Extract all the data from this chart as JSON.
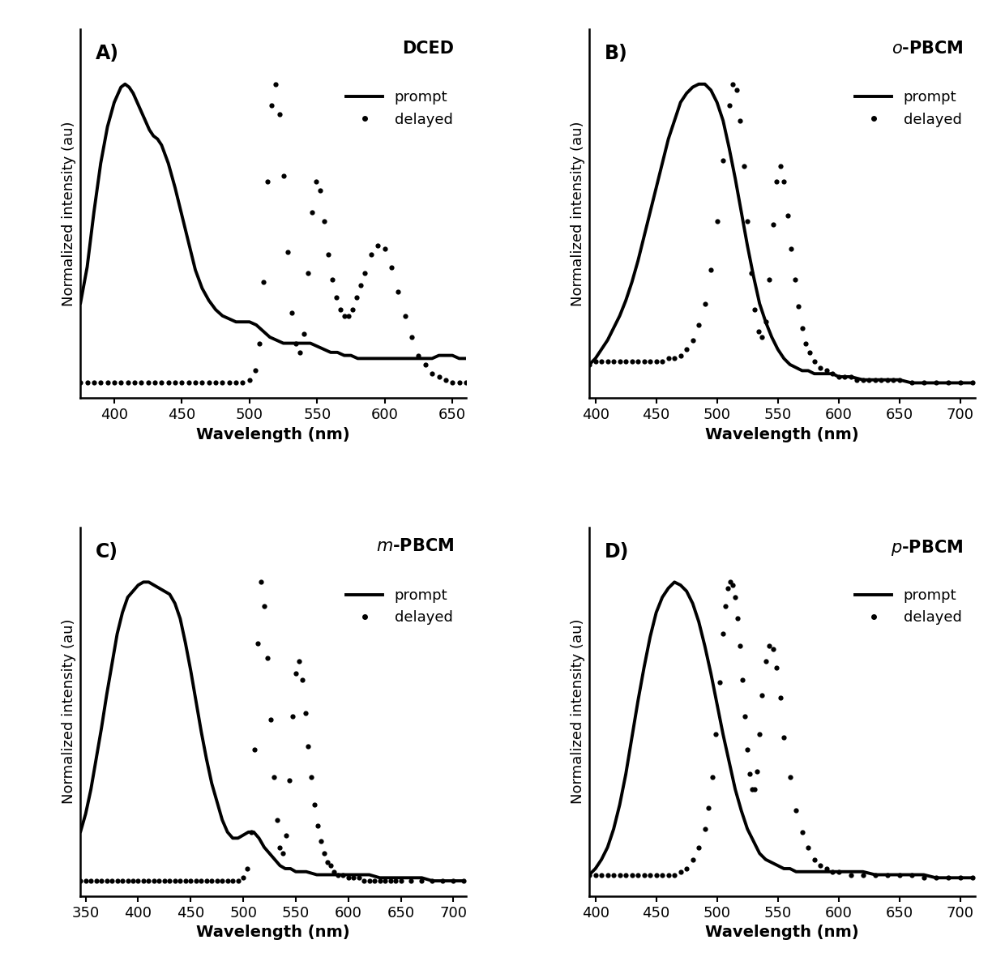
{
  "panels": [
    {
      "label": "A)",
      "title": "DCED",
      "title_italic": false,
      "xlim": [
        375,
        660
      ],
      "xticks": [
        400,
        450,
        500,
        550,
        600,
        650
      ],
      "prompt_x": [
        375,
        380,
        385,
        390,
        395,
        400,
        405,
        408,
        411,
        414,
        417,
        420,
        423,
        426,
        429,
        432,
        435,
        440,
        445,
        450,
        455,
        460,
        465,
        470,
        475,
        480,
        485,
        490,
        495,
        500,
        505,
        510,
        515,
        520,
        525,
        530,
        535,
        540,
        545,
        550,
        555,
        560,
        565,
        570,
        575,
        580,
        585,
        590,
        595,
        600,
        605,
        610,
        615,
        620,
        625,
        630,
        635,
        640,
        645,
        650,
        655,
        660
      ],
      "prompt_y": [
        0.28,
        0.4,
        0.58,
        0.74,
        0.86,
        0.94,
        0.99,
        1.0,
        0.99,
        0.97,
        0.94,
        0.91,
        0.88,
        0.85,
        0.83,
        0.82,
        0.8,
        0.74,
        0.66,
        0.57,
        0.48,
        0.39,
        0.33,
        0.29,
        0.26,
        0.24,
        0.23,
        0.22,
        0.22,
        0.22,
        0.21,
        0.19,
        0.17,
        0.16,
        0.15,
        0.15,
        0.15,
        0.15,
        0.15,
        0.14,
        0.13,
        0.12,
        0.12,
        0.11,
        0.11,
        0.1,
        0.1,
        0.1,
        0.1,
        0.1,
        0.1,
        0.1,
        0.1,
        0.1,
        0.1,
        0.1,
        0.1,
        0.11,
        0.11,
        0.11,
        0.1,
        0.1
      ],
      "delayed_x": [
        375,
        380,
        385,
        390,
        395,
        400,
        405,
        410,
        415,
        420,
        425,
        430,
        435,
        440,
        445,
        450,
        455,
        460,
        465,
        470,
        475,
        480,
        485,
        490,
        495,
        500,
        504,
        507,
        510,
        513,
        516,
        519,
        522,
        525,
        528,
        531,
        534,
        537,
        540,
        543,
        546,
        549,
        552,
        555,
        558,
        561,
        564,
        567,
        570,
        573,
        576,
        579,
        582,
        585,
        590,
        595,
        600,
        605,
        610,
        615,
        620,
        625,
        630,
        635,
        640,
        645,
        650,
        655,
        660
      ],
      "delayed_y": [
        0.02,
        0.02,
        0.02,
        0.02,
        0.02,
        0.02,
        0.02,
        0.02,
        0.02,
        0.02,
        0.02,
        0.02,
        0.02,
        0.02,
        0.02,
        0.02,
        0.02,
        0.02,
        0.02,
        0.02,
        0.02,
        0.02,
        0.02,
        0.02,
        0.02,
        0.03,
        0.06,
        0.15,
        0.35,
        0.68,
        0.93,
        1.0,
        0.9,
        0.7,
        0.45,
        0.25,
        0.15,
        0.12,
        0.18,
        0.38,
        0.58,
        0.68,
        0.65,
        0.55,
        0.44,
        0.36,
        0.3,
        0.26,
        0.24,
        0.24,
        0.26,
        0.3,
        0.34,
        0.38,
        0.44,
        0.47,
        0.46,
        0.4,
        0.32,
        0.24,
        0.17,
        0.11,
        0.08,
        0.05,
        0.04,
        0.03,
        0.02,
        0.02,
        0.02
      ]
    },
    {
      "label": "B)",
      "title": "o-PBCM",
      "title_italic": true,
      "xlim": [
        395,
        712
      ],
      "xticks": [
        400,
        450,
        500,
        550,
        600,
        650,
        700
      ],
      "prompt_x": [
        395,
        400,
        405,
        410,
        415,
        420,
        425,
        430,
        435,
        440,
        445,
        450,
        455,
        460,
        465,
        470,
        475,
        480,
        485,
        490,
        495,
        500,
        505,
        510,
        515,
        520,
        525,
        530,
        535,
        540,
        545,
        550,
        555,
        560,
        565,
        570,
        575,
        580,
        585,
        590,
        595,
        600,
        610,
        620,
        630,
        640,
        650,
        660,
        670,
        680,
        690,
        700,
        710
      ],
      "prompt_y": [
        0.08,
        0.1,
        0.13,
        0.16,
        0.2,
        0.24,
        0.29,
        0.35,
        0.42,
        0.5,
        0.58,
        0.66,
        0.74,
        0.82,
        0.88,
        0.94,
        0.97,
        0.99,
        1.0,
        1.0,
        0.98,
        0.94,
        0.88,
        0.79,
        0.69,
        0.58,
        0.47,
        0.37,
        0.28,
        0.22,
        0.17,
        0.13,
        0.1,
        0.08,
        0.07,
        0.06,
        0.06,
        0.05,
        0.05,
        0.05,
        0.05,
        0.04,
        0.04,
        0.03,
        0.03,
        0.03,
        0.03,
        0.02,
        0.02,
        0.02,
        0.02,
        0.02,
        0.02
      ],
      "delayed_x": [
        395,
        400,
        405,
        410,
        415,
        420,
        425,
        430,
        435,
        440,
        445,
        450,
        455,
        460,
        465,
        470,
        475,
        480,
        485,
        490,
        495,
        500,
        505,
        510,
        513,
        516,
        519,
        522,
        525,
        528,
        531,
        534,
        537,
        540,
        543,
        546,
        549,
        552,
        555,
        558,
        561,
        564,
        567,
        570,
        573,
        576,
        580,
        585,
        590,
        595,
        600,
        605,
        610,
        615,
        620,
        625,
        630,
        635,
        640,
        645,
        650,
        660,
        670,
        680,
        690,
        700,
        710
      ],
      "delayed_y": [
        0.08,
        0.09,
        0.09,
        0.09,
        0.09,
        0.09,
        0.09,
        0.09,
        0.09,
        0.09,
        0.09,
        0.09,
        0.09,
        0.1,
        0.1,
        0.11,
        0.13,
        0.16,
        0.21,
        0.28,
        0.39,
        0.55,
        0.75,
        0.93,
        1.0,
        0.98,
        0.88,
        0.73,
        0.55,
        0.38,
        0.26,
        0.19,
        0.17,
        0.22,
        0.36,
        0.54,
        0.68,
        0.73,
        0.68,
        0.57,
        0.46,
        0.36,
        0.27,
        0.2,
        0.15,
        0.12,
        0.09,
        0.07,
        0.06,
        0.05,
        0.04,
        0.04,
        0.04,
        0.03,
        0.03,
        0.03,
        0.03,
        0.03,
        0.03,
        0.03,
        0.03,
        0.02,
        0.02,
        0.02,
        0.02,
        0.02,
        0.02
      ]
    },
    {
      "label": "C)",
      "title": "m-PBCM",
      "title_italic": true,
      "xlim": [
        345,
        712
      ],
      "xticks": [
        350,
        400,
        450,
        500,
        550,
        600,
        650,
        700
      ],
      "prompt_x": [
        345,
        350,
        355,
        360,
        365,
        370,
        375,
        380,
        385,
        390,
        395,
        400,
        405,
        410,
        415,
        420,
        425,
        430,
        435,
        440,
        445,
        450,
        455,
        460,
        465,
        470,
        475,
        480,
        485,
        490,
        495,
        500,
        505,
        510,
        515,
        520,
        525,
        530,
        535,
        540,
        545,
        550,
        555,
        560,
        570,
        580,
        590,
        600,
        610,
        620,
        630,
        640,
        650,
        660,
        670,
        680,
        690,
        700,
        710
      ],
      "prompt_y": [
        0.18,
        0.24,
        0.32,
        0.42,
        0.52,
        0.63,
        0.73,
        0.83,
        0.9,
        0.95,
        0.97,
        0.99,
        1.0,
        1.0,
        0.99,
        0.98,
        0.97,
        0.96,
        0.93,
        0.88,
        0.8,
        0.71,
        0.61,
        0.51,
        0.42,
        0.34,
        0.28,
        0.22,
        0.18,
        0.16,
        0.16,
        0.17,
        0.18,
        0.18,
        0.16,
        0.13,
        0.11,
        0.09,
        0.07,
        0.06,
        0.06,
        0.05,
        0.05,
        0.05,
        0.04,
        0.04,
        0.04,
        0.04,
        0.04,
        0.04,
        0.03,
        0.03,
        0.03,
        0.03,
        0.03,
        0.02,
        0.02,
        0.02,
        0.02
      ],
      "delayed_x": [
        345,
        350,
        355,
        360,
        365,
        370,
        375,
        380,
        385,
        390,
        395,
        400,
        405,
        410,
        415,
        420,
        425,
        430,
        435,
        440,
        445,
        450,
        455,
        460,
        465,
        470,
        475,
        480,
        485,
        490,
        495,
        500,
        504,
        508,
        511,
        514,
        517,
        520,
        523,
        526,
        529,
        532,
        535,
        538,
        541,
        544,
        547,
        550,
        553,
        556,
        559,
        562,
        565,
        568,
        571,
        574,
        577,
        580,
        583,
        586,
        590,
        595,
        600,
        605,
        610,
        615,
        620,
        625,
        630,
        635,
        640,
        645,
        650,
        660,
        670,
        680,
        690,
        700,
        710
      ],
      "delayed_y": [
        0.02,
        0.02,
        0.02,
        0.02,
        0.02,
        0.02,
        0.02,
        0.02,
        0.02,
        0.02,
        0.02,
        0.02,
        0.02,
        0.02,
        0.02,
        0.02,
        0.02,
        0.02,
        0.02,
        0.02,
        0.02,
        0.02,
        0.02,
        0.02,
        0.02,
        0.02,
        0.02,
        0.02,
        0.02,
        0.02,
        0.02,
        0.03,
        0.06,
        0.18,
        0.45,
        0.8,
        1.0,
        0.92,
        0.75,
        0.55,
        0.36,
        0.22,
        0.13,
        0.11,
        0.17,
        0.35,
        0.56,
        0.7,
        0.74,
        0.68,
        0.57,
        0.46,
        0.36,
        0.27,
        0.2,
        0.15,
        0.11,
        0.08,
        0.07,
        0.05,
        0.04,
        0.04,
        0.03,
        0.03,
        0.03,
        0.02,
        0.02,
        0.02,
        0.02,
        0.02,
        0.02,
        0.02,
        0.02,
        0.02,
        0.02,
        0.02,
        0.02,
        0.02,
        0.02
      ]
    },
    {
      "label": "D)",
      "title": "p-PBCM",
      "title_italic": true,
      "xlim": [
        395,
        712
      ],
      "xticks": [
        400,
        450,
        500,
        550,
        600,
        650,
        700
      ],
      "prompt_x": [
        395,
        400,
        405,
        410,
        415,
        420,
        425,
        430,
        435,
        440,
        445,
        450,
        455,
        460,
        465,
        470,
        475,
        480,
        485,
        490,
        495,
        500,
        505,
        510,
        515,
        520,
        525,
        530,
        535,
        540,
        545,
        550,
        555,
        560,
        565,
        570,
        575,
        580,
        590,
        600,
        610,
        620,
        630,
        640,
        650,
        660,
        670,
        680,
        690,
        700,
        710
      ],
      "prompt_y": [
        0.04,
        0.06,
        0.09,
        0.13,
        0.19,
        0.27,
        0.37,
        0.49,
        0.61,
        0.72,
        0.82,
        0.9,
        0.95,
        0.98,
        1.0,
        0.99,
        0.97,
        0.93,
        0.87,
        0.79,
        0.7,
        0.6,
        0.5,
        0.41,
        0.32,
        0.25,
        0.19,
        0.15,
        0.11,
        0.09,
        0.08,
        0.07,
        0.06,
        0.06,
        0.05,
        0.05,
        0.05,
        0.05,
        0.05,
        0.05,
        0.05,
        0.05,
        0.04,
        0.04,
        0.04,
        0.04,
        0.04,
        0.03,
        0.03,
        0.03,
        0.03
      ],
      "delayed_x": [
        395,
        400,
        405,
        410,
        415,
        420,
        425,
        430,
        435,
        440,
        445,
        450,
        455,
        460,
        465,
        470,
        475,
        480,
        485,
        490,
        493,
        496,
        499,
        502,
        505,
        507,
        509,
        511,
        513,
        515,
        517,
        519,
        521,
        523,
        525,
        527,
        529,
        531,
        533,
        535,
        537,
        540,
        543,
        546,
        549,
        552,
        555,
        560,
        565,
        570,
        575,
        580,
        585,
        590,
        595,
        600,
        610,
        620,
        630,
        640,
        650,
        660,
        670,
        680,
        690,
        700,
        710
      ],
      "delayed_y": [
        0.04,
        0.04,
        0.04,
        0.04,
        0.04,
        0.04,
        0.04,
        0.04,
        0.04,
        0.04,
        0.04,
        0.04,
        0.04,
        0.04,
        0.04,
        0.05,
        0.06,
        0.09,
        0.13,
        0.19,
        0.26,
        0.36,
        0.5,
        0.67,
        0.83,
        0.92,
        0.98,
        1.0,
        0.99,
        0.95,
        0.88,
        0.79,
        0.68,
        0.56,
        0.45,
        0.37,
        0.32,
        0.32,
        0.38,
        0.5,
        0.63,
        0.74,
        0.79,
        0.78,
        0.72,
        0.62,
        0.49,
        0.36,
        0.25,
        0.18,
        0.13,
        0.09,
        0.07,
        0.06,
        0.05,
        0.05,
        0.04,
        0.04,
        0.04,
        0.04,
        0.04,
        0.04,
        0.03,
        0.03,
        0.03,
        0.03,
        0.03
      ]
    }
  ],
  "ylabel": "Normalized intensity (au)",
  "xlabel": "Wavelength (nm)",
  "line_color": "#000000",
  "prompt_lw": 2.8,
  "delayed_dot_size": 4.5,
  "fontsize_xlabel": 14,
  "fontsize_ylabel": 13,
  "fontsize_axis_tick": 13,
  "fontsize_panel": 17,
  "fontsize_title": 15,
  "fontsize_legend": 13
}
